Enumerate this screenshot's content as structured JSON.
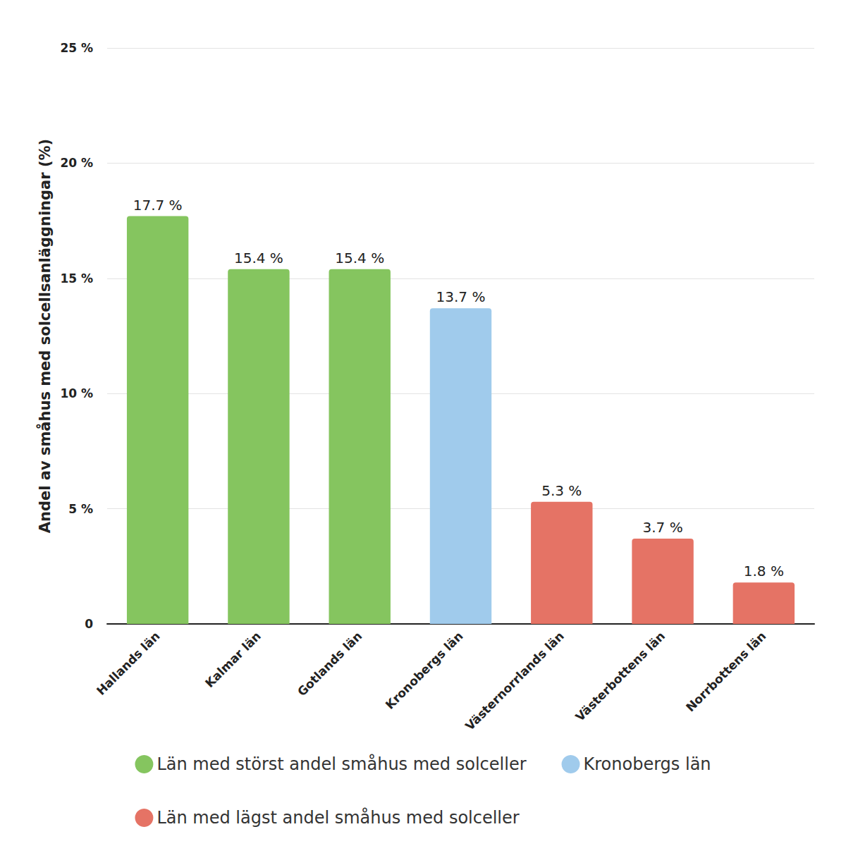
{
  "chart_data": {
    "type": "bar",
    "y_label": "Andel av småhus med solcellsanläggningar (%)",
    "categories": [
      "Hallands län",
      "Kalmar län",
      "Gotlands län",
      "Kronobergs län",
      "Västernorrlands län",
      "Västerbottens län",
      "Norrbottens län"
    ],
    "series": [
      {
        "name": "Län med störst andel småhus med solceller",
        "color": "#85c55f",
        "values": [
          17.7,
          15.4,
          15.4,
          null,
          null,
          null,
          null
        ],
        "value_labels": [
          "17.7 %",
          "15.4 %",
          "15.4 %",
          null,
          null,
          null,
          null
        ]
      },
      {
        "name": "Kronobergs län",
        "color": "#a0cbec",
        "values": [
          null,
          null,
          null,
          13.7,
          null,
          null,
          null
        ],
        "value_labels": [
          null,
          null,
          null,
          "13.7 %",
          null,
          null,
          null
        ]
      },
      {
        "name": "Län med lägst andel småhus med solceller",
        "color": "#e57365",
        "values": [
          null,
          null,
          null,
          null,
          5.3,
          3.7,
          1.8
        ],
        "value_labels": [
          null,
          null,
          null,
          null,
          "5.3 %",
          "3.7 %",
          "1.8 %"
        ]
      }
    ],
    "ylim": [
      0,
      25
    ],
    "yticks": [
      0,
      {
        "value": 5,
        "label": "5 %"
      },
      {
        "value": 10,
        "label": "10 %"
      },
      {
        "value": 15,
        "label": "15 %"
      },
      {
        "value": 20,
        "label": "20 %"
      },
      {
        "value": 25,
        "label": "25 %"
      }
    ],
    "grid": true,
    "legend": "bottom",
    "data_labels": true
  }
}
